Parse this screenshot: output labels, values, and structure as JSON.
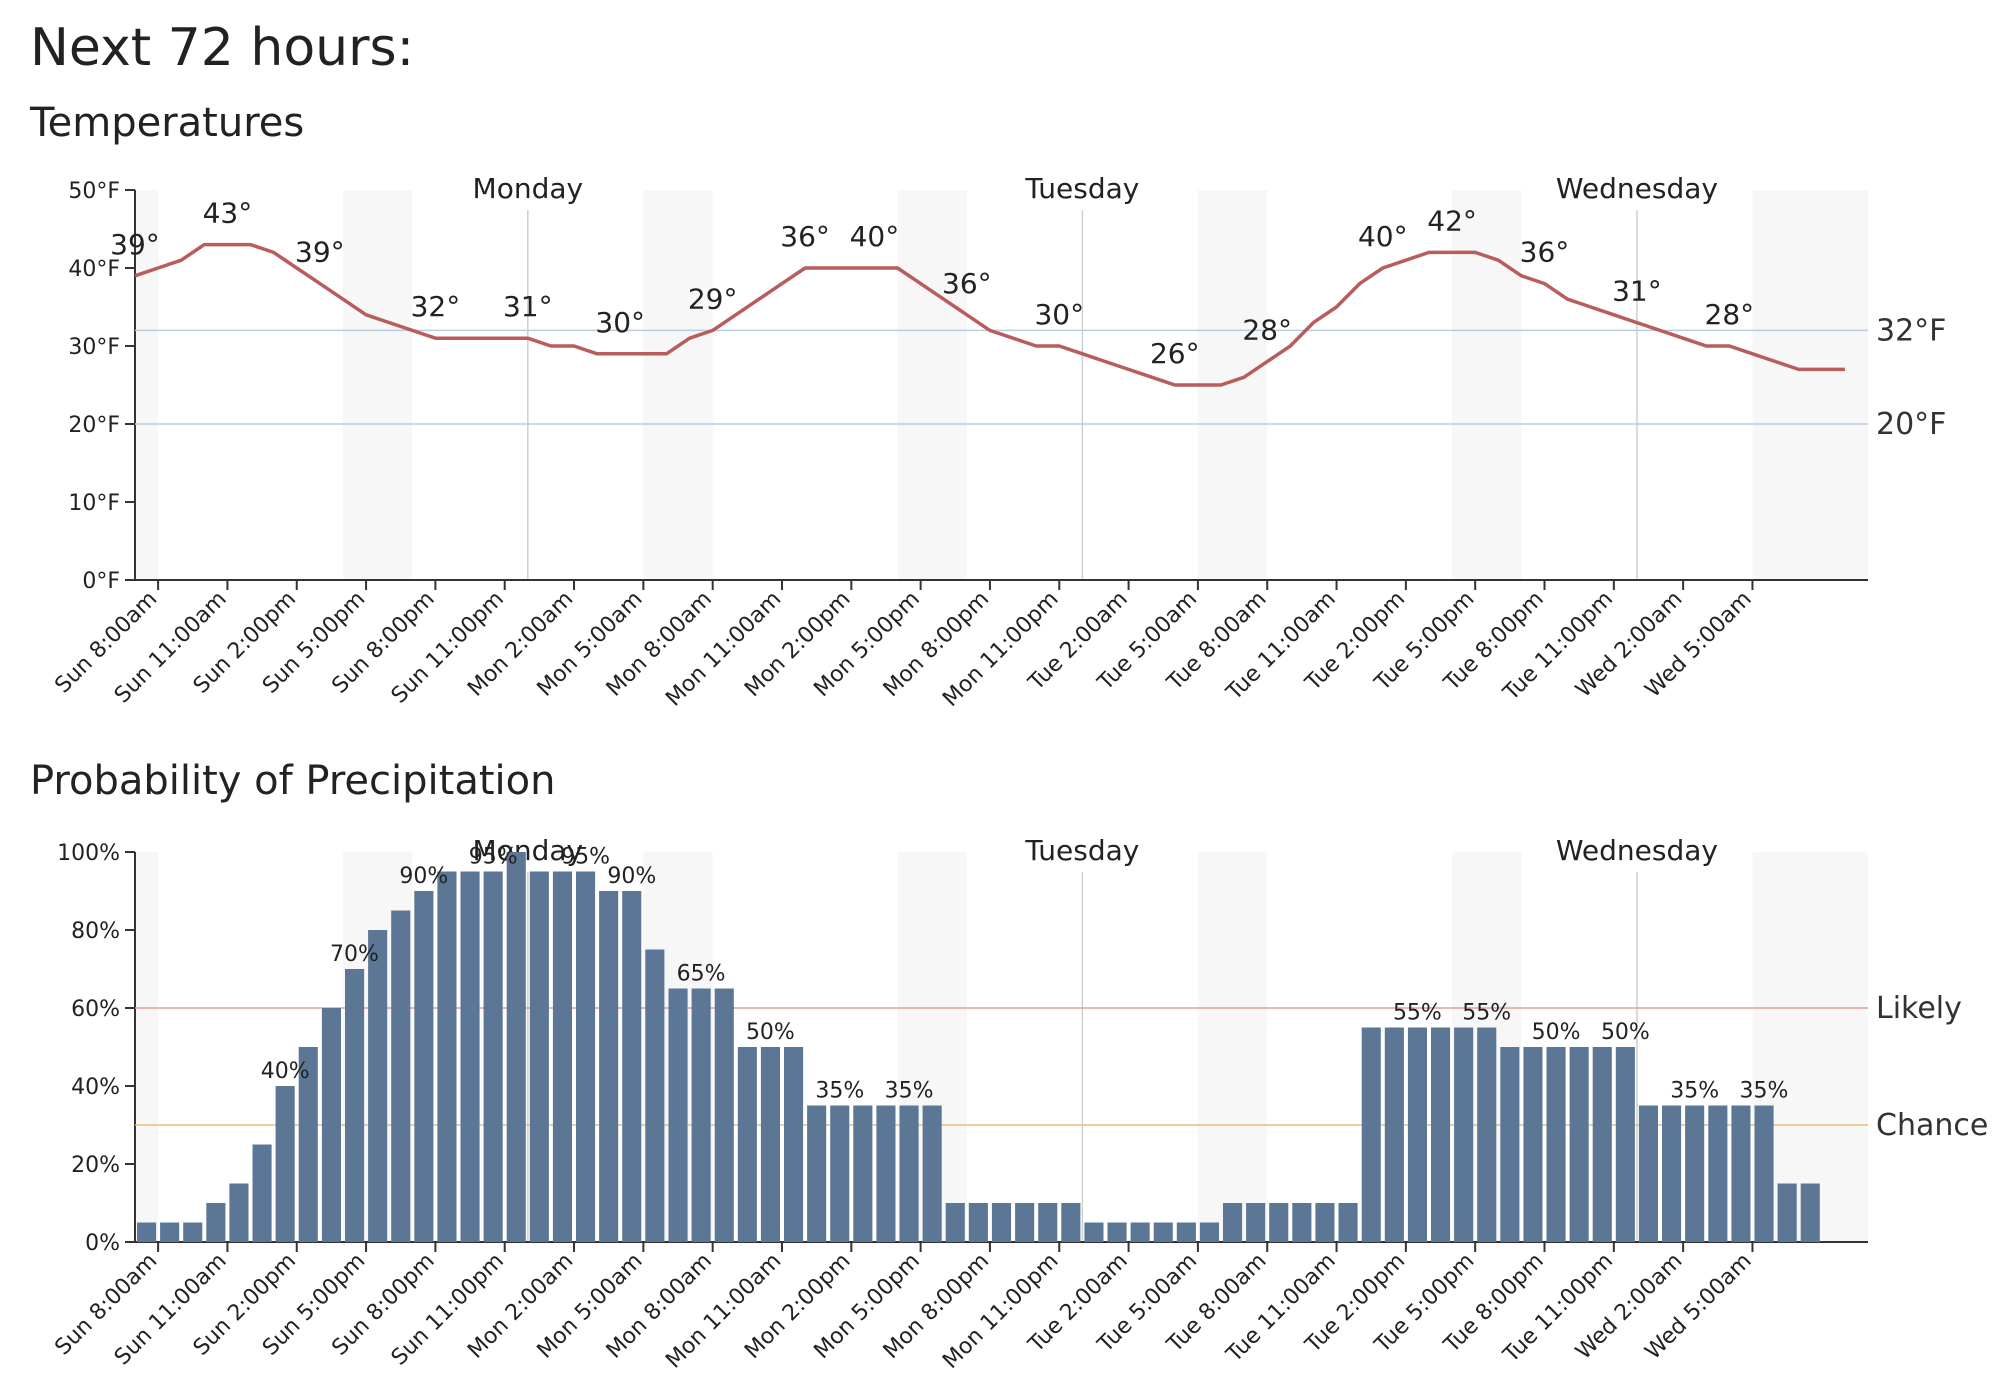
{
  "page": {
    "heading": "Next 72 hours:"
  },
  "x_labels": [
    "Sun 8:00am",
    "Sun 11:00am",
    "Sun 2:00pm",
    "Sun 5:00pm",
    "Sun 8:00pm",
    "Sun 11:00pm",
    "Mon 2:00am",
    "Mon 5:00am",
    "Mon 8:00am",
    "Mon 11:00am",
    "Mon 2:00pm",
    "Mon 5:00pm",
    "Mon 8:00pm",
    "Mon 11:00pm",
    "Tue 2:00am",
    "Tue 5:00am",
    "Tue 8:00am",
    "Tue 11:00am",
    "Tue 2:00pm",
    "Tue 5:00pm",
    "Tue 8:00pm",
    "Tue 11:00pm",
    "Wed 2:00am",
    "Wed 5:00am"
  ],
  "day_labels": [
    "Monday",
    "Tuesday",
    "Wednesday"
  ],
  "colors": {
    "temperature_line": "#b85c5c",
    "bar": "#5b7795",
    "likely": "#e0a0a0",
    "chance": "#e8c070",
    "threshold": "#b8cde0",
    "night": "#f7f7f7"
  },
  "chart_data": [
    {
      "type": "line",
      "title": "Temperatures",
      "x_start": "Sun 7:00am",
      "x_step_hours": 1,
      "y_unit": "°F",
      "ylim": [
        0,
        50
      ],
      "y_ticks": [
        "0°F",
        "10°F",
        "20°F",
        "30°F",
        "40°F",
        "50°F"
      ],
      "reference_lines": [
        {
          "value": 32,
          "label": "32°F"
        },
        {
          "value": 20,
          "label": "20°F"
        }
      ],
      "values": [
        39,
        40,
        41,
        43,
        43,
        43,
        42,
        40,
        38,
        36,
        34,
        33,
        32,
        31,
        31,
        31,
        31,
        31,
        30,
        30,
        29,
        29,
        29,
        29,
        31,
        32,
        34,
        36,
        38,
        40,
        40,
        40,
        40,
        40,
        38,
        36,
        34,
        32,
        31,
        30,
        30,
        29,
        28,
        27,
        26,
        25,
        25,
        25,
        26,
        28,
        30,
        33,
        35,
        38,
        40,
        41,
        42,
        42,
        42,
        41,
        39,
        38,
        36,
        35,
        34,
        33,
        32,
        31,
        30,
        30,
        29,
        28,
        27,
        27,
        27
      ],
      "annotations": [
        "39°",
        "43°",
        "39°",
        "32°",
        "31°",
        "30°",
        "29°",
        "36°",
        "40°",
        "36°",
        "30°",
        "26°",
        "28°",
        "40°",
        "42°",
        "36°",
        "31°",
        "28°"
      ]
    },
    {
      "type": "bar",
      "title": "Probability of Precipitation",
      "x_start": "Sun 7:00am",
      "x_step_hours": 1,
      "y_unit": "%",
      "ylim": [
        0,
        100
      ],
      "y_ticks": [
        "0%",
        "20%",
        "40%",
        "60%",
        "80%",
        "100%"
      ],
      "reference_lines": [
        {
          "value": 60,
          "label": "Likely"
        },
        {
          "value": 30,
          "label": "Chance"
        }
      ],
      "values": [
        5,
        5,
        5,
        10,
        15,
        25,
        40,
        50,
        60,
        70,
        80,
        85,
        90,
        95,
        95,
        95,
        100,
        95,
        95,
        95,
        90,
        90,
        75,
        65,
        65,
        65,
        50,
        50,
        50,
        35,
        35,
        35,
        35,
        35,
        35,
        10,
        10,
        10,
        10,
        10,
        10,
        5,
        5,
        5,
        5,
        5,
        5,
        10,
        10,
        10,
        10,
        10,
        10,
        55,
        55,
        55,
        55,
        55,
        55,
        50,
        50,
        50,
        50,
        50,
        50,
        35,
        35,
        35,
        35,
        35,
        35,
        15,
        15
      ],
      "annotations": [
        "40%",
        "70%",
        "90%",
        "95%",
        "95%",
        "90%",
        "65%",
        "50%",
        "35%",
        "35%",
        "55%",
        "55%",
        "50%",
        "50%",
        "35%",
        "35%"
      ]
    }
  ]
}
